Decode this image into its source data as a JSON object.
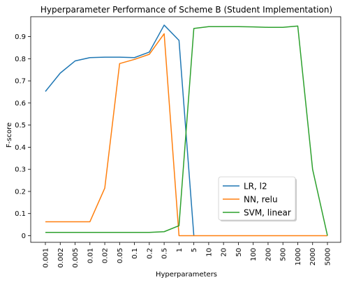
{
  "chart_data": {
    "type": "line",
    "title": "Hyperparameter Performance of Scheme B (Student Implementation)",
    "xlabel": "Hyperparameters",
    "ylabel": "F-score",
    "categories": [
      "0.001",
      "0.002",
      "0.005",
      "0.01",
      "0.02",
      "0.05",
      "0.1",
      "0.2",
      "0.5",
      "1",
      "5",
      "10",
      "20",
      "50",
      "100",
      "200",
      "500",
      "1000",
      "2000",
      "5000"
    ],
    "ylim": [
      -0.03,
      0.99
    ],
    "yticks": [
      "0",
      "0.1",
      "0.2",
      "0.3",
      "0.4",
      "0.5",
      "0.6",
      "0.7",
      "0.8",
      "0.9"
    ],
    "grid": false,
    "legend_position": "lower-right",
    "series": [
      {
        "name": "LR, l2",
        "color": "#1f77b4",
        "values": [
          0.652,
          0.735,
          0.79,
          0.805,
          0.807,
          0.807,
          0.805,
          0.83,
          0.952,
          0.883,
          0.0,
          null,
          null,
          null,
          null,
          null,
          null,
          null,
          null,
          null
        ]
      },
      {
        "name": "NN, relu",
        "color": "#ff7f0e",
        "values": [
          0.063,
          0.063,
          0.063,
          0.063,
          0.215,
          0.778,
          0.797,
          0.82,
          0.913,
          0.0,
          0.0,
          0.0,
          0.0,
          0.0,
          0.0,
          0.0,
          0.0,
          0.0,
          0.0,
          0.0
        ]
      },
      {
        "name": "SVM, linear",
        "color": "#2ca02c",
        "values": [
          0.015,
          0.015,
          0.015,
          0.015,
          0.015,
          0.015,
          0.015,
          0.015,
          0.018,
          0.045,
          0.937,
          0.945,
          0.945,
          0.945,
          0.944,
          0.942,
          0.942,
          0.948,
          0.3,
          0.0
        ]
      }
    ]
  }
}
